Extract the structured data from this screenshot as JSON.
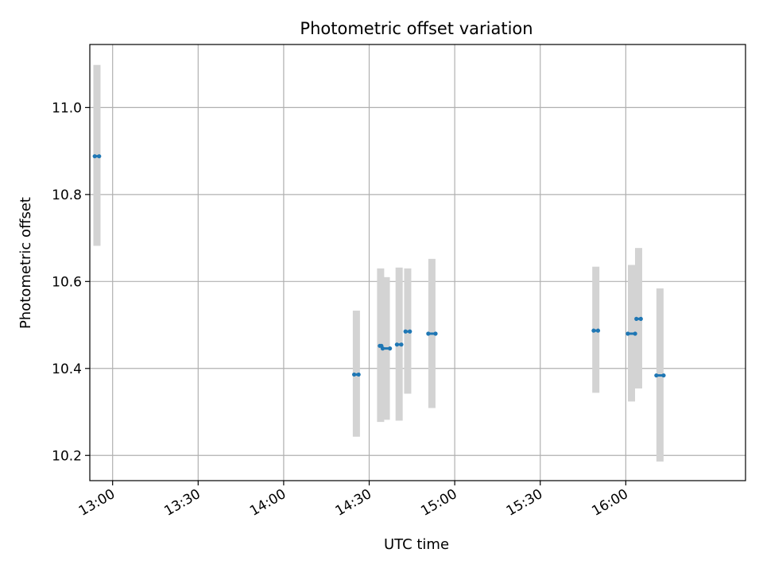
{
  "chart_data": {
    "type": "scatter",
    "title": "Photometric offset variation",
    "xlabel": "UTC time",
    "ylabel": "Photometric offset",
    "xlim": [
      "12:52",
      "16:42"
    ],
    "ylim": [
      10.142,
      11.145
    ],
    "x_ticks": [
      "13:00",
      "13:30",
      "14:00",
      "14:30",
      "15:00",
      "15:30",
      "16:00"
    ],
    "y_ticks": [
      "10.2",
      "10.4",
      "10.6",
      "10.8",
      "11.0"
    ],
    "grid": true,
    "colors": {
      "point": "#1f77b4",
      "errorbar": "#d3d3d3",
      "grid": "#b0b0b0"
    },
    "points": [
      {
        "x_start": "12:54",
        "x_end": "12:55",
        "y": 10.888,
        "y_low": 10.682,
        "y_high": 11.098
      },
      {
        "x_start": "14:25",
        "x_end": "14:26",
        "y": 10.386,
        "y_low": 10.243,
        "y_high": 10.533
      },
      {
        "x_start": "14:34",
        "x_end": "14:34",
        "y": 10.452,
        "y_low": 10.277,
        "y_high": 10.63
      },
      {
        "x_start": "14:35",
        "x_end": "14:37",
        "y": 10.446,
        "y_low": 10.282,
        "y_high": 10.61
      },
      {
        "x_start": "14:40",
        "x_end": "14:41",
        "y": 10.455,
        "y_low": 10.28,
        "y_high": 10.632
      },
      {
        "x_start": "14:43",
        "x_end": "14:44",
        "y": 10.485,
        "y_low": 10.342,
        "y_high": 10.63
      },
      {
        "x_start": "14:51",
        "x_end": "14:53",
        "y": 10.48,
        "y_low": 10.309,
        "y_high": 10.652
      },
      {
        "x_start": "15:49",
        "x_end": "15:50",
        "y": 10.487,
        "y_low": 10.344,
        "y_high": 10.634
      },
      {
        "x_start": "16:01",
        "x_end": "16:03",
        "y": 10.48,
        "y_low": 10.324,
        "y_high": 10.638
      },
      {
        "x_start": "16:04",
        "x_end": "16:05",
        "y": 10.514,
        "y_low": 10.354,
        "y_high": 10.677
      },
      {
        "x_start": "16:11",
        "x_end": "16:13",
        "y": 10.384,
        "y_low": 10.186,
        "y_high": 10.584
      }
    ]
  }
}
